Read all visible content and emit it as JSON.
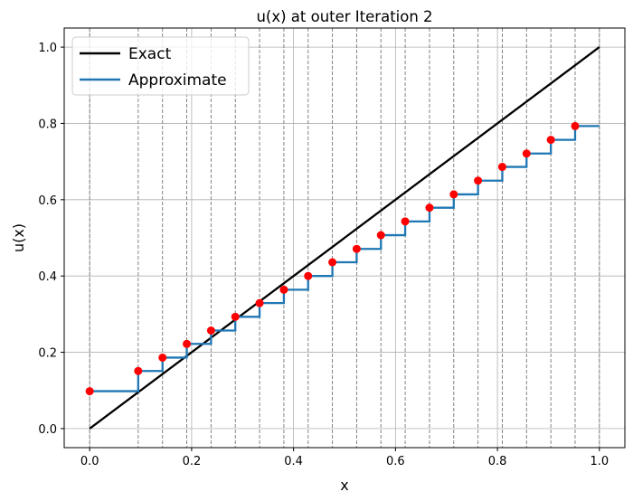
{
  "chart_data": {
    "type": "line",
    "title": "u(x) at outer Iteration 2",
    "xlabel": "x",
    "ylabel": "u(x)",
    "xlim": [
      -0.05,
      1.05
    ],
    "ylim": [
      -0.05,
      1.05
    ],
    "xticks": [
      0.0,
      0.2,
      0.4,
      0.6,
      0.8,
      1.0
    ],
    "xtick_labels": [
      "0.0",
      "0.2",
      "0.4",
      "0.6",
      "0.8",
      "1.0"
    ],
    "yticks": [
      0.0,
      0.2,
      0.4,
      0.6,
      0.8,
      1.0
    ],
    "ytick_labels": [
      "0.0",
      "0.2",
      "0.4",
      "0.6",
      "0.8",
      "1.0"
    ],
    "grid": true,
    "legend_position": "top-left",
    "mesh_nodes": [
      0.0,
      0.0952,
      0.1429,
      0.1905,
      0.2381,
      0.2857,
      0.3333,
      0.381,
      0.4286,
      0.4762,
      0.5238,
      0.5714,
      0.619,
      0.6667,
      0.7143,
      0.7619,
      0.8095,
      0.8571,
      0.9048,
      0.9524,
      1.0
    ],
    "series": [
      {
        "name": "Exact",
        "style": "line",
        "color": "#000000",
        "x": [
          0.0,
          1.0
        ],
        "y": [
          0.0,
          1.0
        ]
      },
      {
        "name": "Approximate",
        "style": "step",
        "color": "#1f77b4",
        "x": [
          0.0,
          0.0952,
          0.1429,
          0.1905,
          0.2381,
          0.2857,
          0.3333,
          0.381,
          0.4286,
          0.4762,
          0.5238,
          0.5714,
          0.619,
          0.6667,
          0.7143,
          0.7619,
          0.8095,
          0.8571,
          0.9048,
          0.9524
        ],
        "y": [
          0.098,
          0.151,
          0.186,
          0.222,
          0.257,
          0.293,
          0.329,
          0.364,
          0.4,
          0.436,
          0.471,
          0.507,
          0.543,
          0.579,
          0.614,
          0.65,
          0.686,
          0.721,
          0.757,
          0.793
        ],
        "x_end": 1.0
      },
      {
        "name": "",
        "style": "points",
        "color": "#ff0000",
        "x": [
          0.0,
          0.0952,
          0.1429,
          0.1905,
          0.2381,
          0.2857,
          0.3333,
          0.381,
          0.4286,
          0.4762,
          0.5238,
          0.5714,
          0.619,
          0.6667,
          0.7143,
          0.7619,
          0.8095,
          0.8571,
          0.9048,
          0.9524
        ],
        "y": [
          0.098,
          0.151,
          0.186,
          0.222,
          0.257,
          0.293,
          0.329,
          0.364,
          0.4,
          0.436,
          0.471,
          0.507,
          0.543,
          0.579,
          0.614,
          0.65,
          0.686,
          0.721,
          0.757,
          0.793
        ]
      }
    ]
  }
}
